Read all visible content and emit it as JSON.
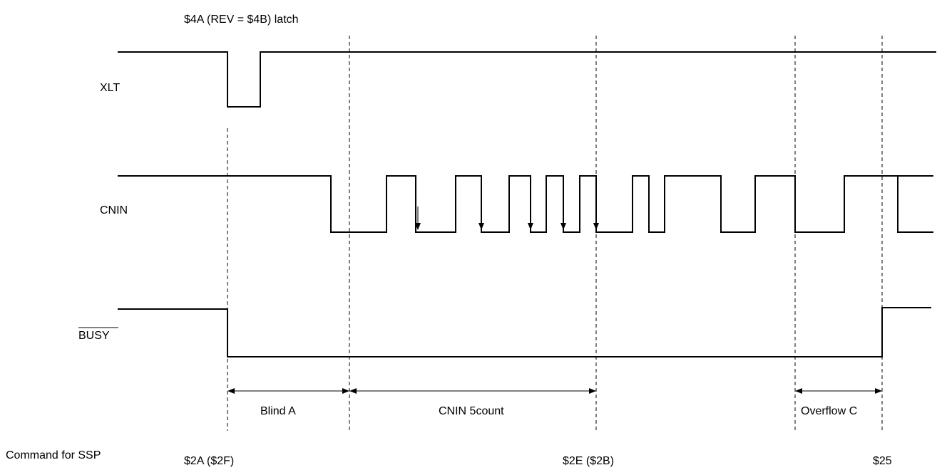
{
  "diagram": {
    "top_label": "$4A (REV = $4B) latch",
    "signals": [
      {
        "id": "xlt",
        "label": "XLT",
        "overline": false
      },
      {
        "id": "cnin",
        "label": "CNIN",
        "overline": false
      },
      {
        "id": "busy",
        "label": "BUSY",
        "overline": true
      }
    ],
    "intervals": [
      {
        "id": "blind-a",
        "label": "Blind A"
      },
      {
        "id": "cnin-5count",
        "label": "CNIN 5count"
      },
      {
        "id": "overflow-c",
        "label": "Overflow C"
      }
    ],
    "commands": {
      "heading": "Command for SSP",
      "items": [
        "$2A ($2F)",
        "$2E ($2B)",
        "$25"
      ]
    }
  }
}
